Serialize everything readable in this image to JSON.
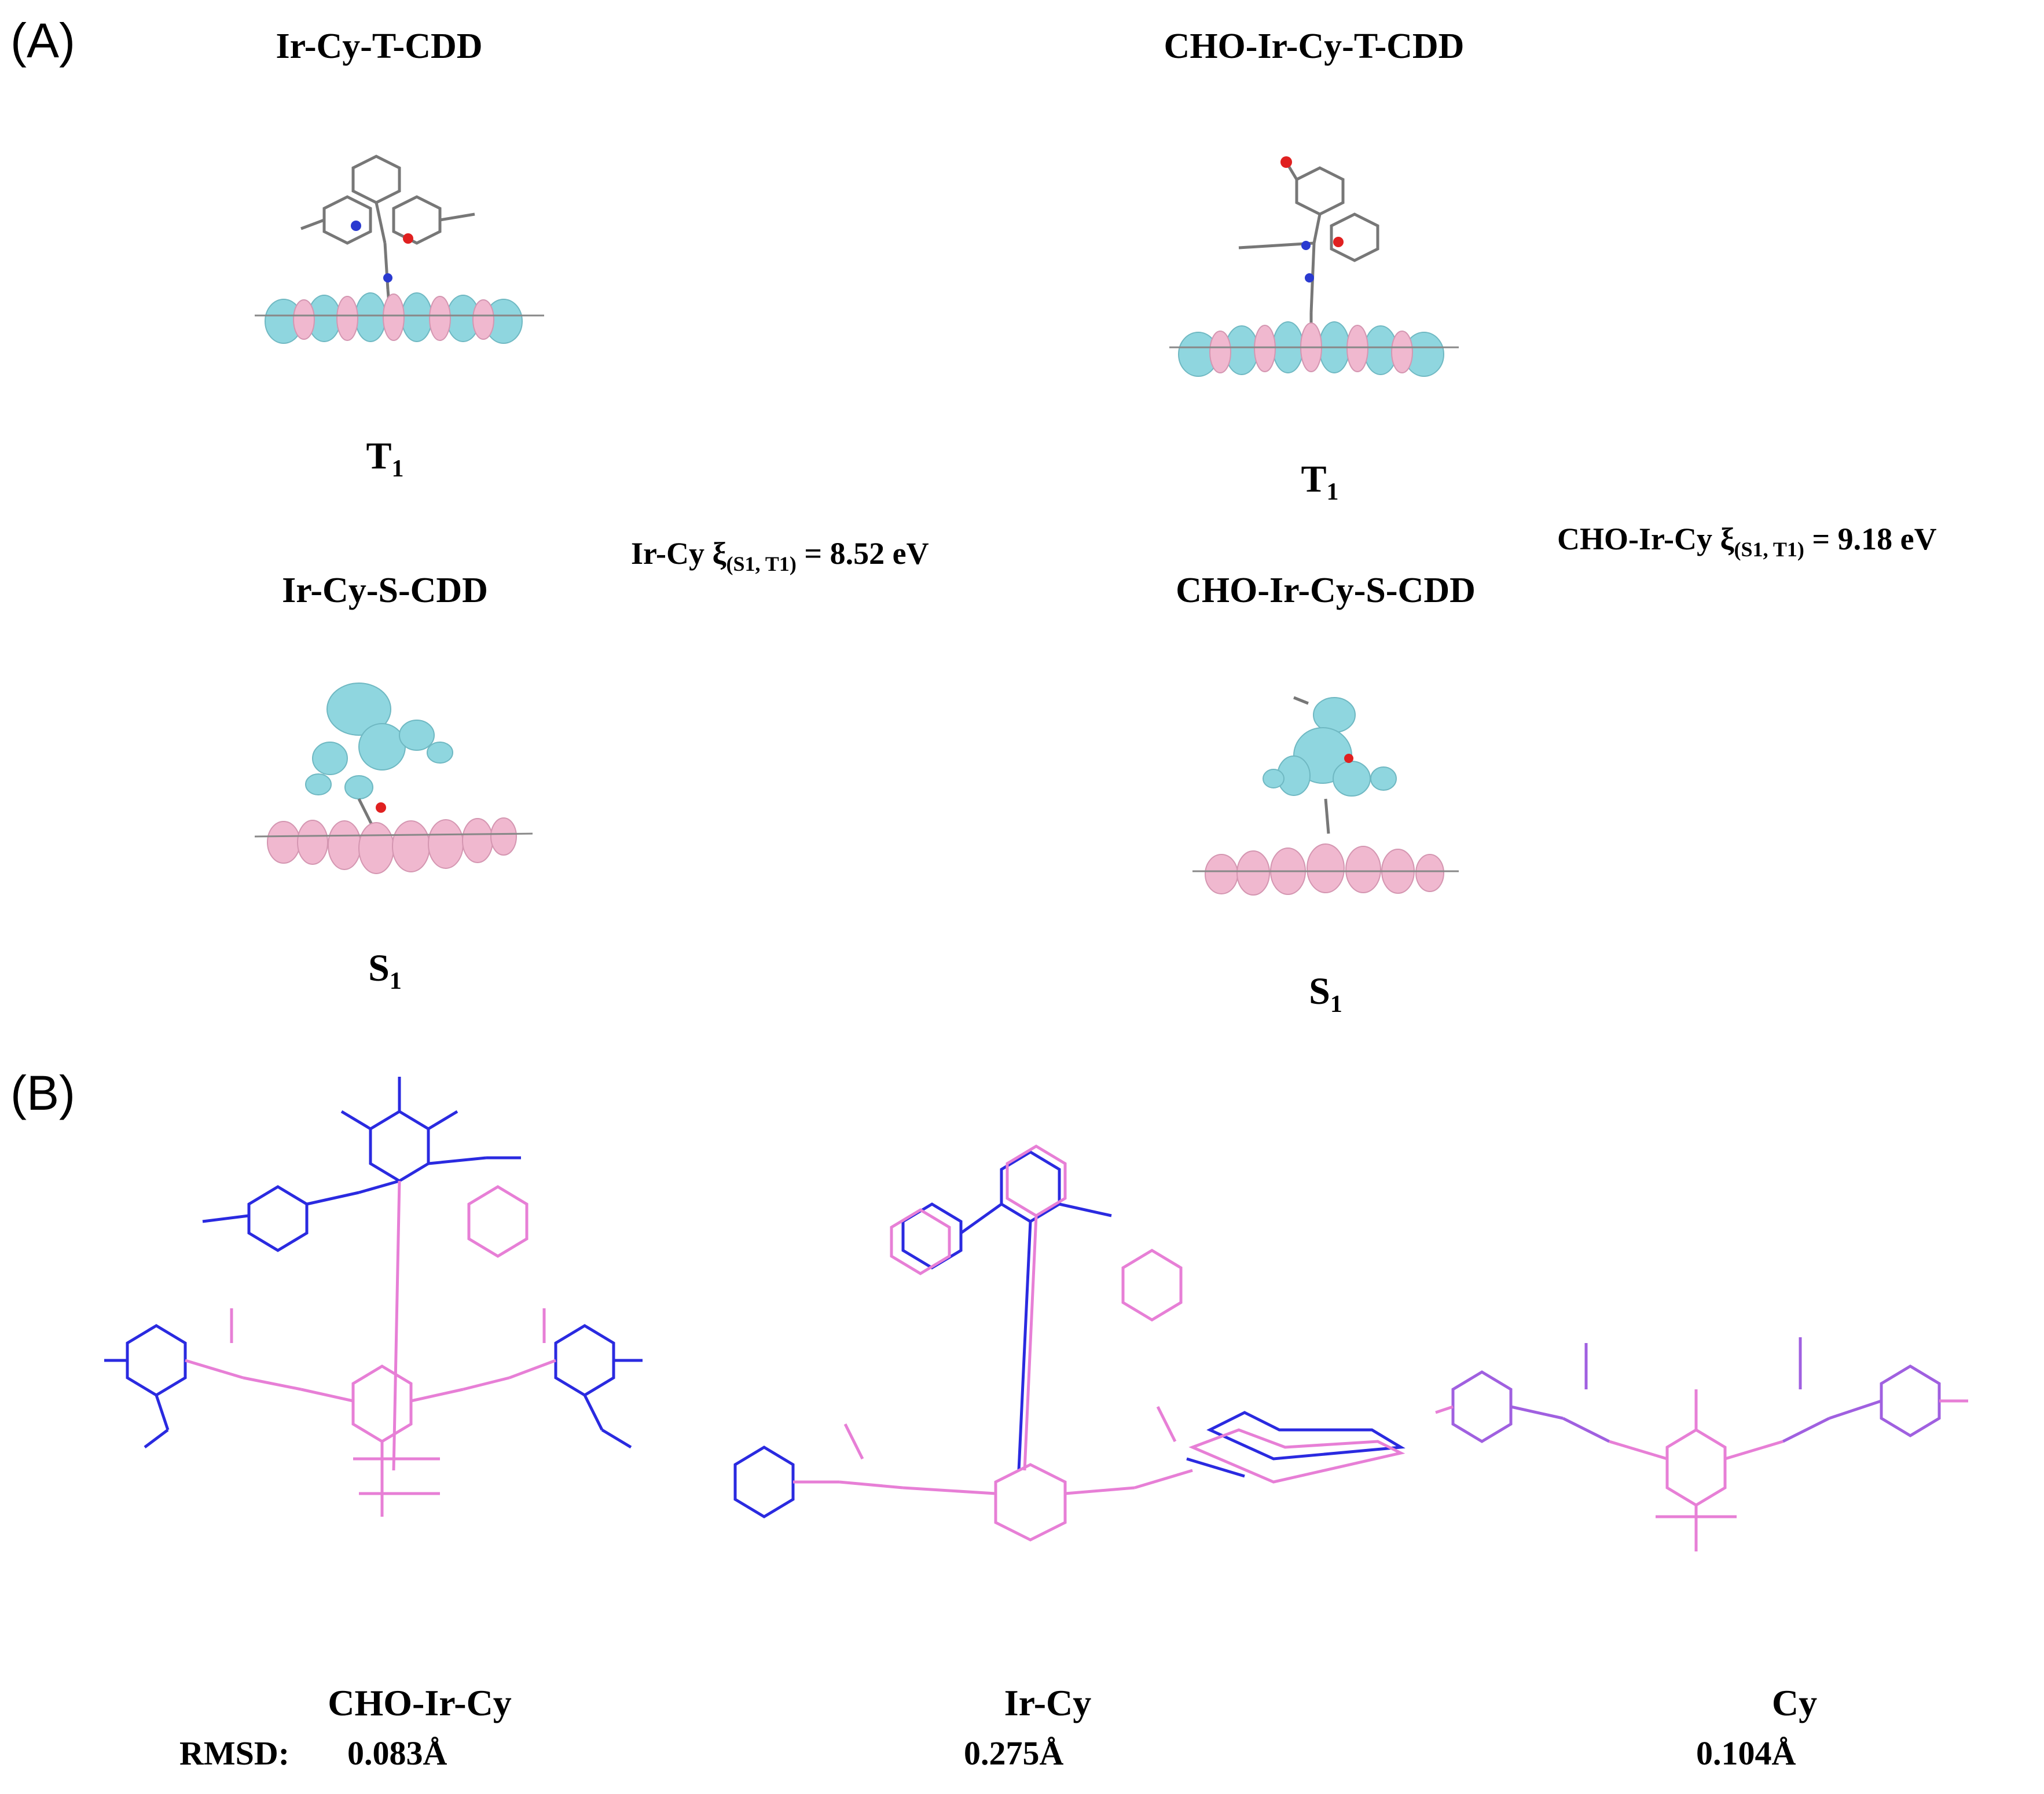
{
  "panel_a": {
    "label": "(A)",
    "left": {
      "triplet_title": "Ir-Cy-T-CDD",
      "triplet_state": "T",
      "triplet_state_sub": "1",
      "singlet_title": "Ir-Cy-S-CDD",
      "singlet_state": "S",
      "singlet_state_sub": "1",
      "xi_prefix": "Ir-Cy ξ",
      "xi_sub": "(S1, T1)",
      "xi_value": " = 8.52 eV"
    },
    "right": {
      "triplet_title": "CHO-Ir-Cy-T-CDD",
      "triplet_state": "T",
      "triplet_state_sub": "1",
      "singlet_title": "CHO-Ir-Cy-S-CDD",
      "singlet_state": "S",
      "singlet_state_sub": "1",
      "xi_prefix": "CHO-Ir-Cy ξ",
      "xi_sub": "(S1, T1)",
      "xi_value": " = 9.18 eV"
    }
  },
  "panel_b": {
    "label": "(B)",
    "structures": [
      {
        "name": "CHO-Ir-Cy",
        "rmsd": "0.083Å"
      },
      {
        "name": "Ir-Cy",
        "rmsd": "0.275Å"
      },
      {
        "name": "Cy",
        "rmsd": "0.104Å"
      }
    ],
    "rmsd_label": "RMSD:"
  },
  "colors": {
    "isosurface_cyan": "#8fd6df",
    "isosurface_pink": "#f0b8cf",
    "stick_blue": "#2a2ae0",
    "stick_pink": "#e77fd6",
    "stick_gray": "#8a8a8a"
  }
}
